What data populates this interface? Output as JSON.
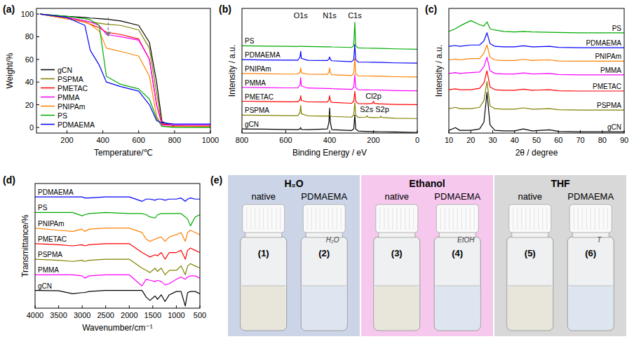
{
  "chart_data": [
    {
      "type": "line",
      "panel": "(a)",
      "x_label": "Temperature/℃",
      "y_label": "Weight/%",
      "x": [
        50,
        200,
        300,
        330,
        380,
        420,
        500,
        600,
        660,
        700,
        730,
        800,
        1000
      ],
      "xlim": [
        30,
        1000
      ],
      "xticks": [
        200,
        400,
        600,
        800,
        1000
      ],
      "ylim": [
        -5,
        105
      ],
      "yticks": [
        0,
        20,
        40,
        60,
        80,
        100
      ],
      "legend": "lower left",
      "series": [
        {
          "name": "gCN",
          "color": "#000000",
          "values": [
            100,
            98,
            97,
            96.5,
            96,
            95.5,
            94,
            90,
            75,
            40,
            5,
            1,
            0.5
          ]
        },
        {
          "name": "PSPMA",
          "color": "#808000",
          "values": [
            100,
            97,
            94,
            93,
            92,
            91,
            90,
            86,
            70,
            30,
            3,
            2,
            2
          ]
        },
        {
          "name": "PMETAC",
          "color": "#ff0000",
          "values": [
            100,
            96,
            93,
            91,
            88,
            84,
            82,
            78,
            60,
            20,
            3,
            2,
            2
          ]
        },
        {
          "name": "PMMA",
          "color": "#ff00ff",
          "values": [
            100,
            97,
            94,
            93,
            90,
            82,
            80,
            77,
            60,
            20,
            2,
            2,
            2
          ]
        },
        {
          "name": "PNIPAm",
          "color": "#ff8000",
          "values": [
            100,
            96,
            93,
            91,
            85,
            70,
            67,
            63,
            45,
            10,
            1,
            1,
            1
          ]
        },
        {
          "name": "PS",
          "color": "#00aa00",
          "values": [
            100,
            98,
            96,
            95,
            90,
            45,
            38,
            34,
            25,
            8,
            1,
            0,
            0
          ]
        },
        {
          "name": "PDMAEMA",
          "color": "#0000ff",
          "values": [
            100,
            97,
            90,
            68,
            55,
            40,
            36,
            32,
            20,
            6,
            4,
            3,
            3
          ]
        }
      ],
      "arrows": [
        {
          "x": 430,
          "y_from": 97,
          "y_to": 80
        }
      ]
    },
    {
      "type": "line",
      "panel": "(b)",
      "x_label": "Binding Energy / eV",
      "y_label": "Intensity / a.u.",
      "x": [
        800,
        700,
        600,
        545,
        535,
        532,
        529,
        500,
        410,
        403,
        400,
        397,
        390,
        300,
        290,
        285,
        281,
        270,
        235,
        229,
        225,
        205,
        200,
        196,
        170,
        166,
        162,
        100,
        0
      ],
      "xlim": [
        800,
        0
      ],
      "xticks": [
        800,
        600,
        400,
        200,
        0
      ],
      "ylim": [
        0,
        90
      ],
      "tick_labels": "x",
      "legend": "left",
      "series": [
        {
          "name": "gCN",
          "color": "#000000",
          "values": [
            3,
            2.8,
            2.6,
            2.5,
            3,
            4,
            2.6,
            2.5,
            3,
            8,
            18,
            8,
            2.5,
            1.8,
            3,
            13,
            3,
            1.5,
            1.2,
            1.2,
            1.2,
            1.1,
            1.1,
            1.1,
            1,
            1,
            1,
            0.8,
            0.5
          ]
        },
        {
          "name": "PSPMA",
          "color": "#808000",
          "values": [
            13,
            12.8,
            12.6,
            12.6,
            15,
            20,
            14,
            12.5,
            12.2,
            12.8,
            13.2,
            12.6,
            12,
            11.5,
            13,
            22,
            13,
            11.3,
            11.5,
            12.5,
            11.4,
            11.2,
            11.2,
            11.2,
            11.3,
            12.2,
            11.3,
            10.7,
            10.5
          ]
        },
        {
          "name": "PMETAC",
          "color": "#ff0000",
          "values": [
            23,
            22.8,
            22.6,
            22.6,
            24,
            27,
            23.5,
            22.5,
            22.4,
            24,
            27,
            23.5,
            22.2,
            21.5,
            23,
            30,
            23,
            21.3,
            21.2,
            21.2,
            21.2,
            21.4,
            23,
            21.4,
            21,
            21,
            21,
            20.7,
            20.5
          ]
        },
        {
          "name": "PMMA",
          "color": "#ff00ff",
          "values": [
            33,
            32.8,
            32.6,
            32.6,
            35,
            40,
            34,
            32.5,
            32.2,
            32.2,
            32.2,
            32.2,
            32,
            31.5,
            33,
            42,
            33,
            31.3,
            31.2,
            31.2,
            31.2,
            31.1,
            31.1,
            31.1,
            31,
            31,
            31,
            30.7,
            30.5
          ]
        },
        {
          "name": "PNIPAm",
          "color": "#ff8000",
          "values": [
            43,
            42.8,
            42.6,
            42.6,
            44,
            47,
            43.5,
            42.5,
            42.4,
            44,
            47,
            43.5,
            42.2,
            41.5,
            43,
            54,
            43,
            41.3,
            41.2,
            41.2,
            41.2,
            41.1,
            41.1,
            41.1,
            41,
            41,
            41,
            40.7,
            40.5
          ]
        },
        {
          "name": "PDMAEMA",
          "color": "#0000ff",
          "values": [
            53,
            52.8,
            52.6,
            52.6,
            55,
            59,
            54,
            52.5,
            52.4,
            53.5,
            55,
            53.2,
            52.2,
            51.5,
            53,
            64,
            53,
            51.3,
            51.2,
            51.2,
            51.2,
            51.1,
            51.1,
            51.1,
            51,
            51,
            51,
            50.7,
            50.5
          ]
        },
        {
          "name": "PS",
          "color": "#00aa00",
          "values": [
            63,
            62.8,
            62.6,
            62.5,
            62.6,
            62.8,
            62.6,
            62.5,
            62.3,
            62.3,
            62.3,
            62.3,
            62.2,
            61.8,
            63,
            80,
            63,
            61.5,
            61.3,
            61.3,
            61.3,
            61.2,
            61.2,
            61.2,
            61.1,
            61.1,
            61.1,
            60.8,
            60.5
          ]
        }
      ],
      "annotations": [
        {
          "text": "O1s",
          "x": 532,
          "y": 83
        },
        {
          "text": "N1s",
          "x": 400,
          "y": 83
        },
        {
          "text": "C1s",
          "x": 285,
          "y": 83
        },
        {
          "text": "Cl2p",
          "x": 200,
          "y": 25
        },
        {
          "text": "S2s S2p",
          "x": 195,
          "y": 15
        }
      ]
    },
    {
      "type": "line",
      "panel": "(c)",
      "x_label": "2θ / degree",
      "y_label": "Intensity / a.u.",
      "x": [
        10,
        13,
        15,
        20,
        24,
        26,
        27.4,
        28.8,
        31,
        35,
        40,
        44,
        48,
        56,
        60,
        70,
        80,
        90
      ],
      "xlim": [
        10,
        90
      ],
      "xticks": [
        10,
        20,
        30,
        40,
        50,
        60,
        70,
        80,
        90
      ],
      "ylim": [
        0,
        46
      ],
      "tick_labels": "x",
      "legend": "right",
      "series": [
        {
          "name": "gCN",
          "color": "#000000",
          "values": [
            1,
            2,
            1,
            1,
            1.5,
            4,
            15,
            3,
            1,
            0.8,
            0.8,
            1.5,
            0.8,
            1.2,
            0.6,
            0.5,
            0.5,
            0.5
          ]
        },
        {
          "name": "PSPMA",
          "color": "#808000",
          "values": [
            9,
            9.5,
            9,
            9,
            9.5,
            12,
            19,
            10,
            9,
            8.8,
            8.8,
            9.3,
            8.8,
            9,
            8.6,
            8.5,
            8.5,
            8.5
          ]
        },
        {
          "name": "PMETAC",
          "color": "#ff0000",
          "values": [
            16,
            16.3,
            16,
            16,
            16.5,
            18.5,
            23,
            17,
            16,
            15.8,
            15.8,
            16.2,
            15.8,
            16,
            15.6,
            15.5,
            15.5,
            15.5
          ]
        },
        {
          "name": "PMMA",
          "color": "#ff00ff",
          "values": [
            22,
            22.3,
            22,
            22.3,
            22.5,
            24.5,
            28,
            23,
            22,
            21.8,
            21.8,
            22.2,
            21.8,
            22,
            21.6,
            21.5,
            21.5,
            21.5
          ]
        },
        {
          "name": "PNIPAm",
          "color": "#ff8000",
          "values": [
            27,
            27.3,
            27,
            27.5,
            27.5,
            29.5,
            32.5,
            28,
            27,
            26.8,
            26.8,
            27.2,
            26.8,
            27,
            26.6,
            26.5,
            26.5,
            26.5
          ]
        },
        {
          "name": "PDMAEMA",
          "color": "#0000ff",
          "values": [
            32,
            32.3,
            32,
            32.5,
            32.5,
            34,
            37,
            33,
            32,
            31.8,
            31.8,
            32.2,
            31.8,
            32,
            31.6,
            31.5,
            31.5,
            31.5
          ]
        },
        {
          "name": "PS",
          "color": "#00aa00",
          "values": [
            37.5,
            38.5,
            39.5,
            41.5,
            40,
            39.5,
            41,
            38.5,
            38,
            37.5,
            37.3,
            37.5,
            37.3,
            37.2,
            37.1,
            37,
            37,
            37
          ]
        }
      ]
    },
    {
      "type": "line",
      "panel": "(d)",
      "x_label": "Wavenumber/cm⁻¹",
      "y_label": "Transmittance/%",
      "x": [
        4000,
        3500,
        3200,
        3000,
        2950,
        2850,
        2500,
        2000,
        1730,
        1640,
        1560,
        1450,
        1400,
        1320,
        1240,
        1150,
        1000,
        900,
        810,
        760,
        700,
        600,
        500
      ],
      "xlim": [
        4000,
        500
      ],
      "xticks": [
        4000,
        3500,
        3000,
        2500,
        2000,
        1500,
        1000,
        500
      ],
      "ylim": [
        -4,
        52
      ],
      "tick_labels": "x",
      "legend": "left",
      "series": [
        {
          "name": "gCN",
          "color": "#000000",
          "values": [
            4,
            3.8,
            2.5,
            3,
            3,
            3.5,
            4,
            4,
            4,
            1,
            -0.5,
            1.5,
            0,
            2,
            -1,
            2,
            3.5,
            3.5,
            -3,
            3,
            3.5,
            3.5,
            2.5
          ]
        },
        {
          "name": "PMMA",
          "color": "#ff00ff",
          "values": [
            11,
            11,
            11,
            10.5,
            9.5,
            10.5,
            11,
            11,
            6,
            9,
            8.5,
            8,
            8.5,
            8,
            6.5,
            7,
            9,
            10,
            9,
            10,
            10.5,
            10.5,
            9.5
          ]
        },
        {
          "name": "PSPMA",
          "color": "#808000",
          "values": [
            18,
            17.5,
            17,
            17.5,
            17,
            17.5,
            18,
            18,
            14,
            13,
            12,
            14,
            12.5,
            14,
            11,
            13,
            13,
            15,
            11,
            15,
            16,
            15,
            14
          ]
        },
        {
          "name": "PMETAC",
          "color": "#ff0000",
          "values": [
            25,
            24.5,
            24,
            24.5,
            24,
            24.5,
            25,
            25,
            21,
            20,
            19,
            20,
            19.5,
            21,
            18,
            21,
            21,
            22,
            18,
            22,
            23,
            22,
            21
          ]
        },
        {
          "name": "PNIPAm",
          "color": "#ff8000",
          "values": [
            32,
            31,
            30.5,
            31.5,
            30.5,
            31.5,
            32,
            32,
            30,
            27,
            26,
            27,
            27.5,
            28,
            26,
            28,
            29,
            30,
            26,
            30,
            31,
            30,
            29
          ]
        },
        {
          "name": "PS",
          "color": "#00aa00",
          "values": [
            39,
            39,
            39,
            37.5,
            38,
            38.5,
            39,
            38.5,
            38.5,
            38,
            37,
            36.5,
            38,
            38.5,
            38.5,
            38.5,
            38.5,
            38.5,
            37,
            36,
            33,
            37,
            38
          ]
        },
        {
          "name": "PDMAEMA",
          "color": "#0000ff",
          "values": [
            46,
            46,
            46,
            46,
            45.5,
            45.5,
            46,
            46,
            44,
            45,
            45,
            44.5,
            45,
            45,
            44.5,
            45,
            45,
            45.5,
            44,
            45,
            45.5,
            45,
            45
          ]
        }
      ]
    }
  ],
  "photos": {
    "panel": "(e)",
    "panels": [
      {
        "title": "H₂O",
        "color": "#ccd5e8",
        "vials": [
          {
            "number": "(1)",
            "label": "native",
            "color": "#e8e6da"
          },
          {
            "number": "(2)",
            "label": "PDMAEMA",
            "cap_text": "H₂O",
            "color": "#dde6f0"
          }
        ]
      },
      {
        "title": "Ethanol",
        "color": "#f6c8ee",
        "vials": [
          {
            "number": "(3)",
            "label": "native",
            "color": "#e8e6da"
          },
          {
            "number": "(4)",
            "label": "PDMAEMA",
            "cap_text": "EtOH",
            "color": "#dde6f0"
          }
        ]
      },
      {
        "title": "THF",
        "color": "#d8d8d8",
        "vials": [
          {
            "number": "(5)",
            "label": "native",
            "color": "#e8e6da"
          },
          {
            "number": "(6)",
            "label": "PDMAEMA",
            "cap_text": "T",
            "color": "#dde6f0"
          }
        ]
      }
    ]
  }
}
